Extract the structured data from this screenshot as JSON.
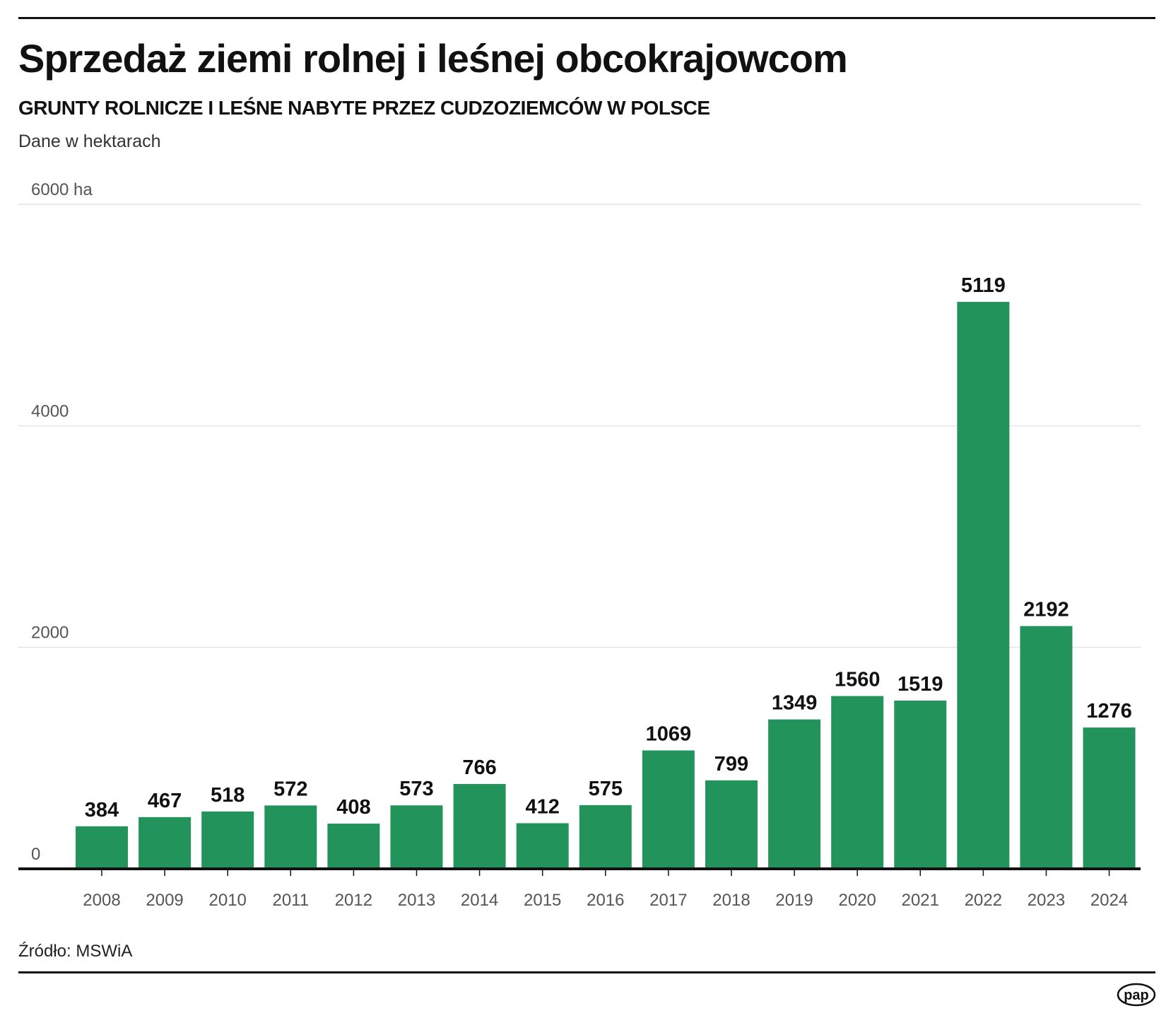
{
  "chart_data": {
    "type": "bar",
    "title": "Sprzedaż ziemi rolnej i leśnej obcokrajowcom",
    "subtitle": "GRUNTY ROLNICZE I LEŚNE NABYTE PRZEZ CUDZOZIEMCÓW W POLSCE",
    "note": "Dane w hektarach",
    "categories": [
      "2008",
      "2009",
      "2010",
      "2011",
      "2012",
      "2013",
      "2014",
      "2015",
      "2016",
      "2017",
      "2018",
      "2019",
      "2020",
      "2021",
      "2022",
      "2023",
      "2024"
    ],
    "values": [
      384,
      467,
      518,
      572,
      408,
      573,
      766,
      412,
      575,
      1069,
      799,
      1349,
      1560,
      1519,
      5119,
      2192,
      1276
    ],
    "ylim": [
      0,
      6000
    ],
    "yticks": [
      0,
      2000,
      4000,
      6000
    ],
    "ytick_labels": [
      "0",
      "2000",
      "4000",
      "6000 ha"
    ],
    "grid": true,
    "bar_color": "#22935a",
    "source": "Źródło: MSWiA"
  },
  "logo": "pap"
}
